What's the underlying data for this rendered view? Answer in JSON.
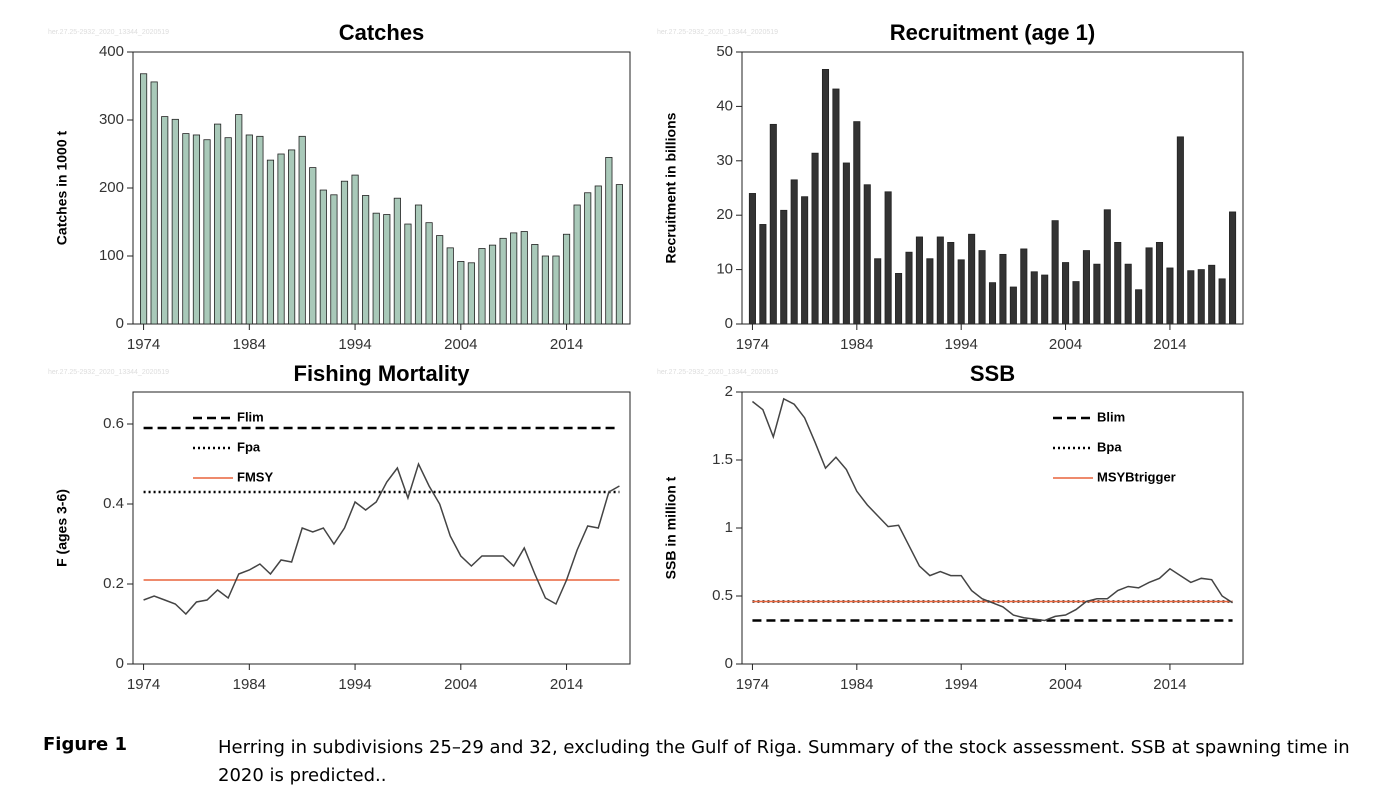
{
  "figure_label": "Figure 1",
  "caption": "Herring in subdivisions 25–29 and 32, excluding the Gulf of Riga. Summary of the stock assessment. SSB at spawning time in 2020 is predicted..",
  "chart_data": [
    {
      "type": "bar",
      "title": "Catches",
      "ylabel": "Catches in 1000 t",
      "watermark": "her.27.25-2932_2020_13344_2020519",
      "x": [
        1974,
        1975,
        1976,
        1977,
        1978,
        1979,
        1980,
        1981,
        1982,
        1983,
        1984,
        1985,
        1986,
        1987,
        1988,
        1989,
        1990,
        1991,
        1992,
        1993,
        1994,
        1995,
        1996,
        1997,
        1998,
        1999,
        2000,
        2001,
        2002,
        2003,
        2004,
        2005,
        2006,
        2007,
        2008,
        2009,
        2010,
        2011,
        2012,
        2013,
        2014,
        2015,
        2016,
        2017,
        2018,
        2019
      ],
      "values": [
        368,
        356,
        305,
        301,
        280,
        278,
        271,
        294,
        274,
        308,
        278,
        276,
        241,
        250,
        256,
        276,
        230,
        197,
        190,
        210,
        219,
        189,
        163,
        161,
        185,
        147,
        175,
        149,
        130,
        112,
        92,
        90,
        111,
        116,
        126,
        134,
        136,
        117,
        100,
        100,
        132,
        175,
        193,
        203,
        245,
        205
      ],
      "color": "#a9c9b9",
      "xlim": [
        1973,
        2020
      ],
      "ylim": [
        0,
        400
      ],
      "xticks": [
        1974,
        1984,
        1994,
        2004,
        2014
      ],
      "yticks": [
        0,
        100,
        200,
        300,
        400
      ]
    },
    {
      "type": "bar",
      "title": "Recruitment (age 1)",
      "ylabel": "Recruitment in billions",
      "watermark": "her.27.25-2932_2020_13344_2020519",
      "x": [
        1974,
        1975,
        1976,
        1977,
        1978,
        1979,
        1980,
        1981,
        1982,
        1983,
        1984,
        1985,
        1986,
        1987,
        1988,
        1989,
        1990,
        1991,
        1992,
        1993,
        1994,
        1995,
        1996,
        1997,
        1998,
        1999,
        2000,
        2001,
        2002,
        2003,
        2004,
        2005,
        2006,
        2007,
        2008,
        2009,
        2010,
        2011,
        2012,
        2013,
        2014,
        2015,
        2016,
        2017,
        2018,
        2019,
        2020
      ],
      "values": [
        24,
        18.3,
        36.7,
        20.9,
        26.5,
        23.4,
        31.4,
        46.8,
        43.2,
        29.6,
        37.2,
        25.6,
        12,
        24.3,
        9.3,
        13.2,
        16,
        12,
        16,
        15,
        11.8,
        16.5,
        13.5,
        7.6,
        12.8,
        6.8,
        13.8,
        9.6,
        9,
        19,
        11.3,
        7.8,
        13.5,
        11,
        21,
        15,
        11,
        6.3,
        14,
        15,
        10.3,
        34.4,
        9.8,
        10,
        10.8,
        8.3,
        20.6
      ],
      "color": "#333333",
      "xlim": [
        1973,
        2021
      ],
      "ylim": [
        0,
        50
      ],
      "xticks": [
        1974,
        1984,
        1994,
        2004,
        2014
      ],
      "yticks": [
        0,
        10,
        20,
        30,
        40,
        50
      ]
    },
    {
      "type": "line",
      "title": "Fishing Mortality",
      "ylabel": "F (ages 3-6)",
      "watermark": "her.27.25-2932_2020_13344_2020519",
      "x": [
        1974,
        1975,
        1976,
        1977,
        1978,
        1979,
        1980,
        1981,
        1982,
        1983,
        1984,
        1985,
        1986,
        1987,
        1988,
        1989,
        1990,
        1991,
        1992,
        1993,
        1994,
        1995,
        1996,
        1997,
        1998,
        1999,
        2000,
        2001,
        2002,
        2003,
        2004,
        2005,
        2006,
        2007,
        2008,
        2009,
        2010,
        2011,
        2012,
        2013,
        2014,
        2015,
        2016,
        2017,
        2018,
        2019
      ],
      "values": [
        0.16,
        0.17,
        0.16,
        0.15,
        0.125,
        0.155,
        0.16,
        0.185,
        0.165,
        0.225,
        0.235,
        0.25,
        0.225,
        0.26,
        0.255,
        0.34,
        0.33,
        0.34,
        0.3,
        0.34,
        0.405,
        0.385,
        0.405,
        0.455,
        0.49,
        0.415,
        0.5,
        0.445,
        0.4,
        0.32,
        0.27,
        0.245,
        0.27,
        0.27,
        0.27,
        0.245,
        0.29,
        0.225,
        0.165,
        0.15,
        0.21,
        0.285,
        0.345,
        0.34,
        0.43,
        0.445
      ],
      "color": "#444444",
      "xlim": [
        1973,
        2020
      ],
      "ylim": [
        0,
        0.68
      ],
      "xticks": [
        1974,
        1984,
        1994,
        2004,
        2014
      ],
      "yticks": [
        0,
        0.2,
        0.4,
        0.6
      ],
      "reference_lines": [
        {
          "name": "Flim",
          "value": 0.59,
          "color": "#000000",
          "dash": "dashed"
        },
        {
          "name": "Fpa",
          "value": 0.43,
          "color": "#000000",
          "dash": "dotted"
        },
        {
          "name": "FMSY",
          "value": 0.21,
          "color": "#e8643c",
          "dash": "solid"
        }
      ],
      "legend": "upper left"
    },
    {
      "type": "line",
      "title": "SSB",
      "ylabel": "SSB in million t",
      "watermark": "her.27.25-2932_2020_13344_2020519",
      "x": [
        1974,
        1975,
        1976,
        1977,
        1978,
        1979,
        1980,
        1981,
        1982,
        1983,
        1984,
        1985,
        1986,
        1987,
        1988,
        1989,
        1990,
        1991,
        1992,
        1993,
        1994,
        1995,
        1996,
        1997,
        1998,
        1999,
        2000,
        2001,
        2002,
        2003,
        2004,
        2005,
        2006,
        2007,
        2008,
        2009,
        2010,
        2011,
        2012,
        2013,
        2014,
        2015,
        2016,
        2017,
        2018,
        2019,
        2020
      ],
      "values": [
        1.93,
        1.87,
        1.67,
        1.95,
        1.91,
        1.81,
        1.63,
        1.44,
        1.52,
        1.43,
        1.27,
        1.17,
        1.09,
        1.01,
        1.02,
        0.87,
        0.72,
        0.65,
        0.68,
        0.65,
        0.65,
        0.54,
        0.48,
        0.45,
        0.42,
        0.36,
        0.34,
        0.33,
        0.32,
        0.35,
        0.36,
        0.4,
        0.46,
        0.48,
        0.48,
        0.54,
        0.57,
        0.56,
        0.6,
        0.63,
        0.7,
        0.65,
        0.6,
        0.63,
        0.62,
        0.5,
        0.45
      ],
      "color": "#444444",
      "xlim": [
        1973,
        2021
      ],
      "ylim": [
        0,
        2
      ],
      "xticks": [
        1974,
        1984,
        1994,
        2004,
        2014
      ],
      "yticks": [
        0,
        0.5,
        1,
        1.5,
        2
      ],
      "reference_lines": [
        {
          "name": "Blim",
          "value": 0.32,
          "color": "#000000",
          "dash": "dashed"
        },
        {
          "name": "Bpa",
          "value": 0.46,
          "color": "#000000",
          "dash": "dotted"
        },
        {
          "name": "MSYBtrigger",
          "value": 0.46,
          "color": "#e8643c",
          "dash": "solid"
        }
      ],
      "legend": "upper right"
    }
  ]
}
